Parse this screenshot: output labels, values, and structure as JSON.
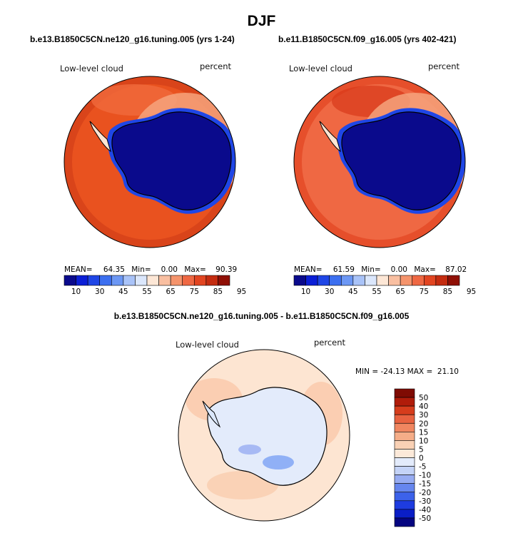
{
  "figure": {
    "title": "DJF",
    "colors": {
      "scale_seq": [
        "#0a0a8c",
        "#0b1fd6",
        "#1f46e6",
        "#3c6ff0",
        "#6c97f4",
        "#a9c3f8",
        "#dbe7fc",
        "#fde7d6",
        "#f9bfa1",
        "#f5946c",
        "#ef6843",
        "#e24521",
        "#c42c10",
        "#8f0f05"
      ],
      "scale_diff": [
        "#050580",
        "#0a1ec6",
        "#1e3ce0",
        "#3c62ea",
        "#6686ee",
        "#97acf2",
        "#c4d3f7",
        "#e3ebfb",
        "#fce9d9",
        "#f9d1b5",
        "#f5ad88",
        "#f08660",
        "#e86240",
        "#d63d1c",
        "#b01c0a",
        "#7f0b03"
      ],
      "ocean_fill": "#e9521f",
      "ice_fill": "#0a0a8c",
      "diff_fill": "#fde5d2"
    }
  },
  "chart_data": [
    {
      "type": "heatmap",
      "panel": "top-left",
      "subtitle": "b.e13.B1850C5CN.ne120_g16.tuning.005 (yrs 1-24)",
      "field_label": "Low-level cloud",
      "units_label": "percent",
      "projection": "south polar stereographic",
      "stats": {
        "mean_label": "MEAN=",
        "mean": "64.35",
        "min_label": "Min=",
        "min": "0.00",
        "max_label": "Max=",
        "max": "90.39"
      },
      "colorbar": {
        "orientation": "horizontal",
        "tick_labels": [
          "10",
          "30",
          "45",
          "55",
          "65",
          "75",
          "85",
          "95"
        ]
      }
    },
    {
      "type": "heatmap",
      "panel": "top-right",
      "subtitle": "b.e11.B1850C5CN.f09_g16.005 (yrs 402-421)",
      "field_label": "Low-level cloud",
      "units_label": "percent",
      "projection": "south polar stereographic",
      "stats": {
        "mean_label": "MEAN=",
        "mean": "61.59",
        "min_label": "Min=",
        "min": "0.00",
        "max_label": "Max=",
        "max": "87.02"
      },
      "colorbar": {
        "orientation": "horizontal",
        "tick_labels": [
          "10",
          "30",
          "45",
          "55",
          "65",
          "75",
          "85",
          "95"
        ]
      }
    },
    {
      "type": "heatmap",
      "panel": "bottom",
      "subtitle": "b.e13.B1850C5CN.ne120_g16.tuning.005 - b.e11.B1850C5CN.f09_g16.005",
      "field_label": "Low-level cloud",
      "units_label": "percent",
      "projection": "south polar stereographic",
      "stats_text": "MIN = -24.13 MAX =  21.10",
      "colorbar": {
        "orientation": "vertical",
        "tick_labels": [
          "50",
          "40",
          "30",
          "20",
          "15",
          "10",
          "5",
          "0",
          "-5",
          "-10",
          "-15",
          "-20",
          "-30",
          "-40",
          "-50"
        ]
      }
    }
  ]
}
